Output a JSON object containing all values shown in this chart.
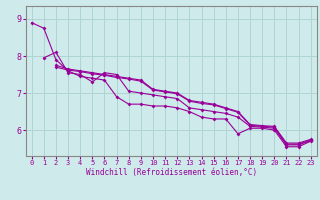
{
  "xlabel": "Windchill (Refroidissement éolien,°C)",
  "background_color": "#ceeaea",
  "grid_color": "#aed4d4",
  "line_color": "#990099",
  "spine_color": "#888888",
  "xlim": [
    -0.5,
    23.5
  ],
  "ylim": [
    5.3,
    9.35
  ],
  "yticks": [
    6,
    7,
    8,
    9
  ],
  "xticks": [
    0,
    1,
    2,
    3,
    4,
    5,
    6,
    7,
    8,
    9,
    10,
    11,
    12,
    13,
    14,
    15,
    16,
    17,
    18,
    19,
    20,
    21,
    22,
    23
  ],
  "lines": [
    {
      "x": [
        0,
        1,
        2,
        3,
        4,
        5,
        6,
        7,
        8,
        9,
        10,
        11,
        12,
        13,
        14,
        15,
        16,
        17,
        18,
        19,
        20,
        21,
        22,
        23
      ],
      "y": [
        8.9,
        8.75,
        7.9,
        7.6,
        7.45,
        7.4,
        7.35,
        6.9,
        6.7,
        6.7,
        6.65,
        6.65,
        6.6,
        6.5,
        6.35,
        6.3,
        6.3,
        5.9,
        6.05,
        6.05,
        6.0,
        5.55,
        5.55,
        5.7
      ]
    },
    {
      "x": [
        1,
        2,
        3,
        4,
        5,
        6,
        7,
        8,
        9,
        10,
        11,
        12,
        13,
        14,
        15,
        16,
        17,
        18,
        19,
        20,
        21,
        22,
        23
      ],
      "y": [
        7.95,
        8.1,
        7.55,
        7.5,
        7.3,
        7.55,
        7.5,
        7.05,
        7.0,
        6.95,
        6.9,
        6.85,
        6.6,
        6.55,
        6.5,
        6.45,
        6.35,
        6.1,
        6.08,
        6.05,
        5.6,
        5.6,
        5.72
      ]
    },
    {
      "x": [
        2,
        3,
        4,
        5,
        6,
        7,
        8,
        9,
        10,
        11,
        12,
        13,
        14,
        15,
        16,
        17,
        18,
        19,
        20,
        21,
        22,
        23
      ],
      "y": [
        7.75,
        7.65,
        7.6,
        7.55,
        7.5,
        7.45,
        7.4,
        7.35,
        7.1,
        7.05,
        7.0,
        6.8,
        6.75,
        6.7,
        6.6,
        6.5,
        6.15,
        6.12,
        6.1,
        5.65,
        5.65,
        5.75
      ]
    },
    {
      "x": [
        2,
        3,
        4,
        5,
        6,
        7,
        8,
        9,
        10,
        11,
        12,
        13,
        14,
        15,
        16,
        17,
        18,
        19,
        20,
        21,
        22,
        23
      ],
      "y": [
        7.7,
        7.62,
        7.58,
        7.52,
        7.48,
        7.42,
        7.38,
        7.32,
        7.08,
        7.03,
        6.98,
        6.78,
        6.72,
        6.68,
        6.58,
        6.48,
        6.13,
        6.1,
        6.08,
        5.62,
        5.62,
        5.73
      ]
    }
  ],
  "figsize": [
    3.2,
    2.0
  ],
  "dpi": 100
}
